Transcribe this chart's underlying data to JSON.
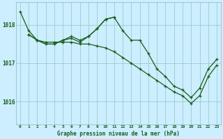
{
  "background_color": "#cceeff",
  "grid_color": "#99cccc",
  "line_color": "#1a5c1a",
  "title": "Graphe pression niveau de la mer (hPa)",
  "xlim": [
    -0.5,
    23.5
  ],
  "ylim": [
    1015.4,
    1018.6
  ],
  "yticks": [
    1016,
    1017,
    1018
  ],
  "xticks": [
    0,
    1,
    2,
    3,
    4,
    5,
    6,
    7,
    8,
    9,
    10,
    11,
    12,
    13,
    14,
    15,
    16,
    17,
    18,
    19,
    20,
    21,
    22,
    23
  ],
  "series": [
    {
      "x": [
        0,
        1,
        2,
        3,
        4,
        5,
        6,
        7,
        8,
        9,
        10,
        11,
        12,
        13,
        14,
        15,
        16,
        17,
        18,
        19,
        20,
        21,
        22,
        23
      ],
      "y": [
        1018.35,
        1017.85,
        1017.6,
        1017.55,
        1017.55,
        1017.55,
        1017.55,
        1017.5,
        1017.5,
        1017.45,
        1017.4,
        1017.3,
        1017.15,
        1017.0,
        1016.85,
        1016.7,
        1016.55,
        1016.4,
        1016.25,
        1016.15,
        1015.95,
        1016.15,
        1016.65,
        1016.95
      ]
    },
    {
      "x": [
        1,
        2,
        3,
        4,
        5,
        6,
        7,
        8,
        9,
        10,
        11,
        12,
        13,
        14,
        15,
        16,
        17,
        18,
        19,
        20,
        21,
        22,
        23
      ],
      "y": [
        1017.75,
        1017.6,
        1017.5,
        1017.5,
        1017.6,
        1017.7,
        1017.6,
        1017.7,
        1017.9,
        1018.15,
        1018.2,
        1017.85,
        1017.6,
        1017.6,
        1017.25,
        1016.85,
        1016.65,
        1016.4,
        1016.3,
        1016.1,
        1016.35,
        1016.85,
        1017.1
      ]
    },
    {
      "x": [
        1,
        2,
        3,
        4,
        5,
        6,
        7,
        8,
        9,
        10,
        11
      ],
      "y": [
        1017.75,
        1017.6,
        1017.5,
        1017.5,
        1017.6,
        1017.65,
        1017.55,
        1017.7,
        1017.9,
        1018.15,
        1018.2
      ]
    }
  ]
}
